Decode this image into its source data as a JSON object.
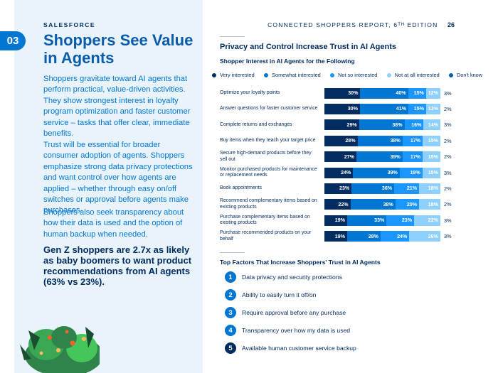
{
  "brand": "SALESFORCE",
  "header": {
    "report_title": "CONNECTED SHOPPERS REPORT, 6ᵀᴴ EDITION",
    "page_number": "26"
  },
  "section": {
    "number": "03",
    "title": "Shoppers See Value in Agents"
  },
  "body": {
    "paragraph1": "Shoppers gravitate toward AI agents that perform practical, value-driven activities. They show strongest interest in loyalty program optimization and faster customer service – tasks that offer clear, immediate benefits.",
    "paragraph2": "Trust will be essential for broader consumer adoption of agents. Shoppers emphasize strong data privacy protections and want control over how agents are applied – whether through easy on/off switches or approval before agents make purchases.",
    "paragraph3": "Shoppers also seek transparency about how their data is used and the option of human backup when needed.",
    "callout": "Gen Z shoppers are 2.7x as likely as baby boomers to want product recommendations from AI agents (63% vs 23%)."
  },
  "privacy_section_title": "Privacy and Control Increase Trust in AI Agents",
  "chart_data": {
    "type": "bar",
    "orientation": "horizontal",
    "stacked": true,
    "title": "Shopper Interest in AI Agents for the Following",
    "legend": [
      {
        "name": "Very interested",
        "color": "#032d60"
      },
      {
        "name": "Somewhat interested",
        "color": "#0176d3"
      },
      {
        "name": "Not so interested",
        "color": "#1b96ff"
      },
      {
        "name": "Not at all interested",
        "color": "#90d0fe"
      },
      {
        "name": "Don't know",
        "color": "#0b5cab"
      }
    ],
    "categories": [
      "Optimize your loyalty points",
      "Answer questions for faster customer service",
      "Complete returns and exchanges",
      "Buy items when they reach your target price",
      "Secure high-demand products before they sell out",
      "Monitor purchased products for maintenance or replacement needs",
      "Book appointments",
      "Recommend complementary items based on existing products",
      "Purchase complementary items based on existing products",
      "Purchase recommended products on your behalf"
    ],
    "series": [
      {
        "name": "Very interested",
        "values": [
          30,
          30,
          29,
          28,
          27,
          24,
          23,
          22,
          19,
          19
        ]
      },
      {
        "name": "Somewhat interested",
        "values": [
          40,
          41,
          38,
          38,
          39,
          39,
          36,
          38,
          33,
          28
        ]
      },
      {
        "name": "Not so interested",
        "values": [
          15,
          15,
          16,
          17,
          17,
          19,
          21,
          20,
          23,
          24
        ]
      },
      {
        "name": "Not at all interested",
        "values": [
          12,
          12,
          14,
          15,
          15,
          15,
          18,
          18,
          22,
          26
        ]
      },
      {
        "name": "Don't know",
        "values": [
          3,
          2,
          3,
          2,
          2,
          3,
          2,
          2,
          3,
          3
        ]
      }
    ],
    "value_suffix": "%"
  },
  "factors": {
    "title": "Top Factors That Increase Shoppers' Trust in AI Agents",
    "items": [
      {
        "num": "1",
        "label": "Data privacy and security protections"
      },
      {
        "num": "2",
        "label": "Ability to easily turn it off/on"
      },
      {
        "num": "3",
        "label": "Require approval before any purchase"
      },
      {
        "num": "4",
        "label": "Transparency over how my data is used"
      },
      {
        "num": "5",
        "label": "Available human customer service backup"
      }
    ]
  }
}
